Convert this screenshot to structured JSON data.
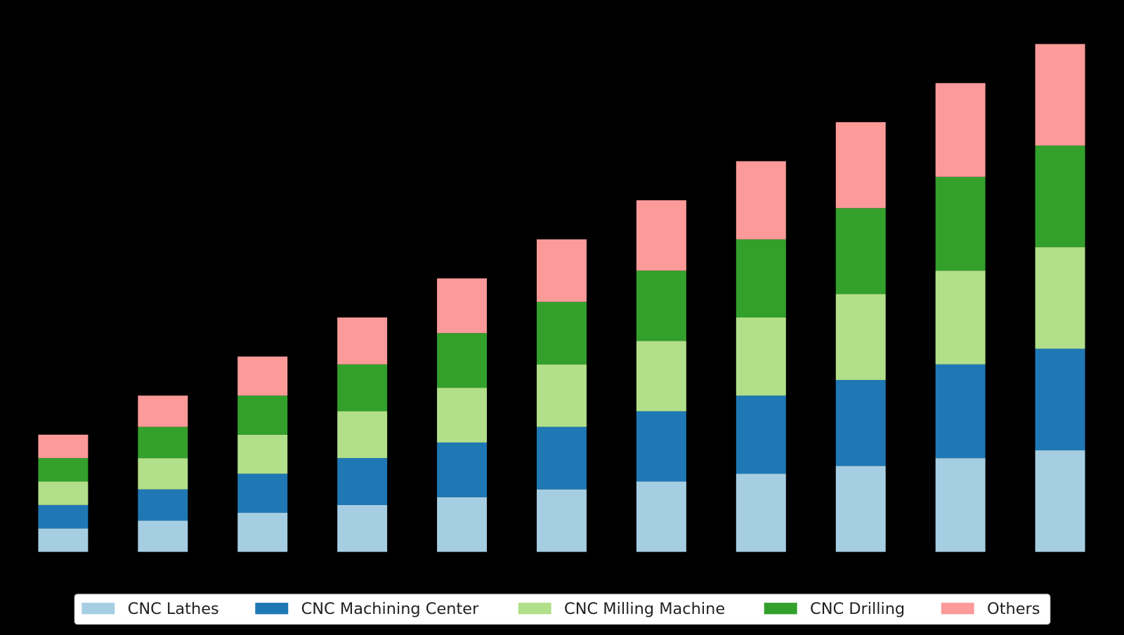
{
  "chart_data": {
    "type": "stacked_bar",
    "categories": [
      null,
      null,
      null,
      null,
      null,
      null,
      null,
      null,
      null,
      null,
      null
    ],
    "series": [
      {
        "name": "CNC Lathes",
        "color": "#a6cee3",
        "values": [
          3,
          4,
          5,
          6,
          7,
          8,
          9,
          10,
          11,
          12,
          13
        ]
      },
      {
        "name": "CNC Machining Center",
        "color": "#1f78b4",
        "values": [
          3,
          4,
          5,
          6,
          7,
          8,
          9,
          10,
          11,
          12,
          13
        ]
      },
      {
        "name": "CNC Milling Machine",
        "color": "#b2df8a",
        "values": [
          3,
          4,
          5,
          6,
          7,
          8,
          9,
          10,
          11,
          12,
          13
        ]
      },
      {
        "name": "CNC Drilling",
        "color": "#33a02c",
        "values": [
          3,
          4,
          5,
          6,
          7,
          8,
          9,
          10,
          11,
          12,
          13
        ]
      },
      {
        "name": "Others",
        "color": "#fb9a99",
        "values": [
          3,
          4,
          5,
          6,
          7,
          8,
          9,
          10,
          11,
          12,
          13
        ]
      }
    ],
    "ylim": [
      0,
      68.25
    ],
    "legend": "bottom"
  }
}
